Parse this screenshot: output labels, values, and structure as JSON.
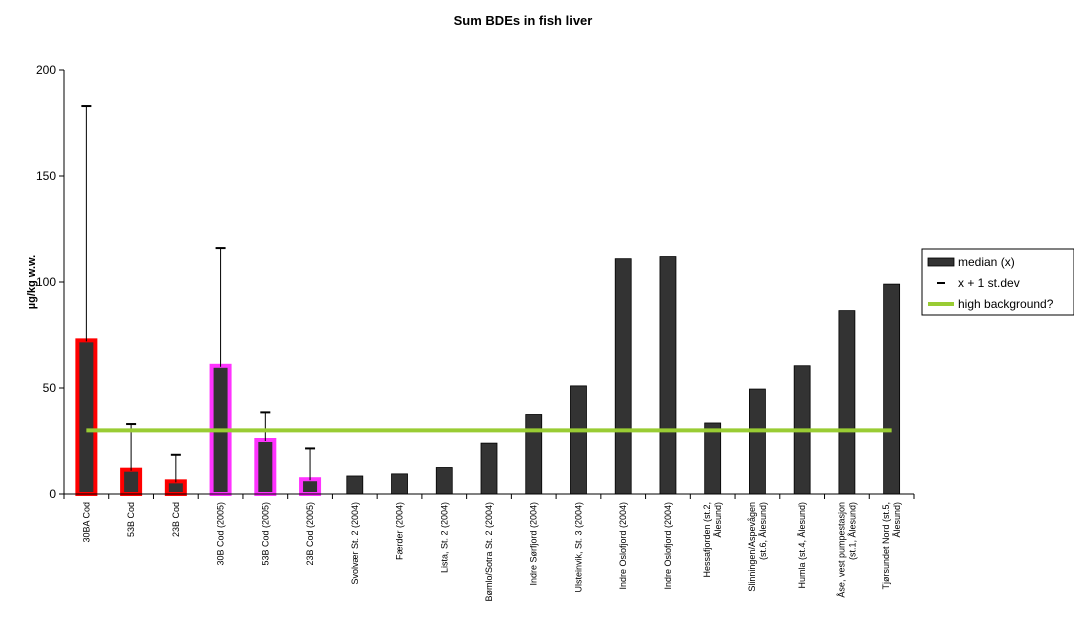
{
  "chart_data": {
    "type": "bar",
    "title": "Sum BDEs in fish liver",
    "xlabel": "",
    "ylabel": "µg/kg w.w.",
    "ylim": [
      0,
      200
    ],
    "yticks": [
      0,
      50,
      100,
      150,
      200
    ],
    "categories": [
      [
        "30BA Cod"
      ],
      [
        "53B Cod"
      ],
      [
        "23B Cod"
      ],
      [
        "30B Cod (2005)"
      ],
      [
        "53B Cod (2005)"
      ],
      [
        "23B Cod (2005)"
      ],
      [
        "Svolvær St. 2 (2004)"
      ],
      [
        "Færder (2004)"
      ],
      [
        "Lista, St. 2 (2004)"
      ],
      [
        "Bømlo/Sotra St. 2 (2004)"
      ],
      [
        "Indre Sørfjord (2004)"
      ],
      [
        "Ulsteinvik, St. 3 (2004)"
      ],
      [
        "Indre Oslofjord (2004)"
      ],
      [
        "Indre Oslofjord (2004)"
      ],
      [
        "Hessafjorden (st.2,",
        "Ålesund)"
      ],
      [
        "Slinningen/Aspevågen",
        "(st.6, Ålesund)"
      ],
      [
        "Humla (st.4, Ålesund)"
      ],
      [
        "Åse, vest pumpestasjon",
        "(st.1, Ålesund)"
      ],
      [
        "Tjørsundet Nord (st.5,",
        "Ålesund)"
      ]
    ],
    "series": [
      {
        "name": "median (x)",
        "color": "#333333",
        "values": [
          72,
          11,
          5.5,
          60,
          25,
          6.5,
          8.5,
          9.5,
          12.5,
          24,
          37.5,
          51,
          111,
          112,
          33.5,
          49.5,
          60.5,
          86.5,
          99
        ]
      },
      {
        "name": "x + 1 st.dev",
        "color": "#000000",
        "values": [
          183,
          33,
          18.5,
          116,
          38.5,
          21.5,
          null,
          null,
          null,
          null,
          null,
          null,
          null,
          null,
          null,
          null,
          null,
          null,
          null
        ]
      },
      {
        "name": "high background?",
        "color": "#99cc33",
        "values": [
          30,
          30,
          30,
          30,
          30,
          30,
          30,
          30,
          30,
          30,
          30,
          30,
          30,
          30,
          30,
          30,
          30,
          30,
          30
        ]
      }
    ],
    "bar_outlines": [
      "#ff0000",
      "#ff0000",
      "#ff0000",
      "#ff33ff",
      "#ff33ff",
      "#ff33ff",
      null,
      null,
      null,
      null,
      null,
      null,
      null,
      null,
      null,
      null,
      null,
      null,
      null
    ],
    "grid": false,
    "legend_position": "right"
  }
}
